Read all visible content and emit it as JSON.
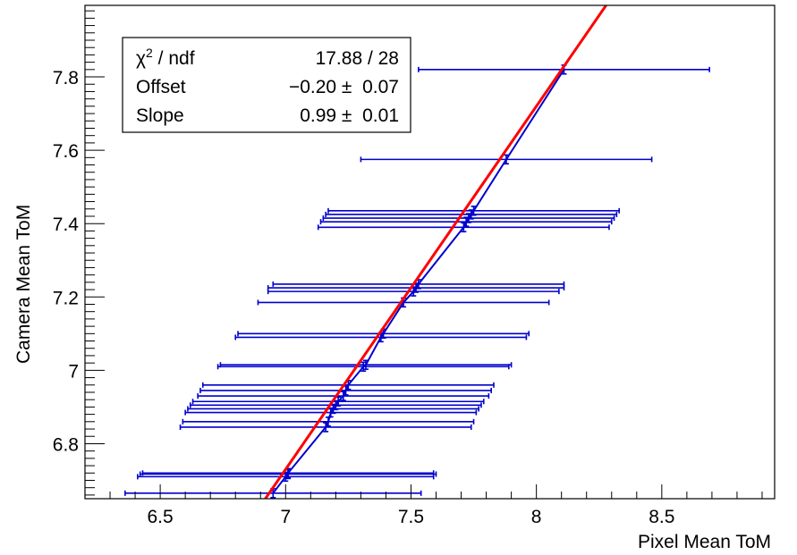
{
  "chart_data": {
    "type": "scatter",
    "xlabel": "Pixel Mean ToM",
    "ylabel": "Camera Mean ToM",
    "xlim": [
      6.2,
      8.95
    ],
    "ylim": [
      6.65,
      7.995
    ],
    "x_ticks": [
      6.5,
      7,
      7.5,
      8,
      8.5
    ],
    "x_tick_labels": [
      "6.5",
      "7",
      "7.5",
      "8",
      "8.5"
    ],
    "y_ticks": [
      6.8,
      7,
      7.2,
      7.4,
      7.6,
      7.8
    ],
    "y_tick_labels": [
      "6.8",
      "7",
      "7.2",
      "7.4",
      "7.6",
      "7.8"
    ],
    "colors": {
      "points": "#0000cc",
      "fit": "#ff0000"
    },
    "series": [
      {
        "points": [
          {
            "x": 6.95,
            "y": 6.665,
            "xerr": 0.59,
            "yerr": 0.012
          },
          {
            "x": 7.0,
            "y": 6.71,
            "xerr": 0.59,
            "yerr": 0.012
          },
          {
            "x": 7.01,
            "y": 6.717,
            "xerr": 0.59,
            "yerr": 0.012
          },
          {
            "x": 7.01,
            "y": 6.72,
            "xerr": 0.58,
            "yerr": 0.012
          },
          {
            "x": 7.16,
            "y": 6.845,
            "xerr": 0.58,
            "yerr": 0.012
          },
          {
            "x": 7.17,
            "y": 6.86,
            "xerr": 0.58,
            "yerr": 0.012
          },
          {
            "x": 7.18,
            "y": 6.885,
            "xerr": 0.58,
            "yerr": 0.012
          },
          {
            "x": 7.19,
            "y": 6.895,
            "xerr": 0.58,
            "yerr": 0.012
          },
          {
            "x": 7.2,
            "y": 6.905,
            "xerr": 0.58,
            "yerr": 0.012
          },
          {
            "x": 7.21,
            "y": 6.915,
            "xerr": 0.58,
            "yerr": 0.012
          },
          {
            "x": 7.23,
            "y": 6.93,
            "xerr": 0.58,
            "yerr": 0.012
          },
          {
            "x": 7.24,
            "y": 6.945,
            "xerr": 0.58,
            "yerr": 0.012
          },
          {
            "x": 7.25,
            "y": 6.96,
            "xerr": 0.58,
            "yerr": 0.012
          },
          {
            "x": 7.31,
            "y": 7.01,
            "xerr": 0.58,
            "yerr": 0.012
          },
          {
            "x": 7.32,
            "y": 7.015,
            "xerr": 0.58,
            "yerr": 0.012
          },
          {
            "x": 7.38,
            "y": 7.09,
            "xerr": 0.58,
            "yerr": 0.012
          },
          {
            "x": 7.39,
            "y": 7.1,
            "xerr": 0.58,
            "yerr": 0.012
          },
          {
            "x": 7.47,
            "y": 7.185,
            "xerr": 0.58,
            "yerr": 0.012
          },
          {
            "x": 7.51,
            "y": 7.215,
            "xerr": 0.58,
            "yerr": 0.012
          },
          {
            "x": 7.52,
            "y": 7.225,
            "xerr": 0.59,
            "yerr": 0.012
          },
          {
            "x": 7.53,
            "y": 7.235,
            "xerr": 0.58,
            "yerr": 0.012
          },
          {
            "x": 7.71,
            "y": 7.39,
            "xerr": 0.58,
            "yerr": 0.012
          },
          {
            "x": 7.72,
            "y": 7.405,
            "xerr": 0.58,
            "yerr": 0.012
          },
          {
            "x": 7.73,
            "y": 7.415,
            "xerr": 0.58,
            "yerr": 0.012
          },
          {
            "x": 7.74,
            "y": 7.425,
            "xerr": 0.58,
            "yerr": 0.012
          },
          {
            "x": 7.75,
            "y": 7.435,
            "xerr": 0.58,
            "yerr": 0.012
          },
          {
            "x": 7.88,
            "y": 7.575,
            "xerr": 0.58,
            "yerr": 0.012
          },
          {
            "x": 8.11,
            "y": 7.82,
            "xerr": 0.58,
            "yerr": 0.012
          }
        ]
      }
    ],
    "fit_line": {
      "offset": -0.2,
      "slope": 0.99
    },
    "stats_box": {
      "rows": [
        {
          "label": "χ² / ndf",
          "value": "17.88 / 28"
        },
        {
          "label": "Offset",
          "value": "−0.20 ±  0.07"
        },
        {
          "label": "Slope",
          "value": "0.99 ±  0.01"
        }
      ]
    }
  }
}
